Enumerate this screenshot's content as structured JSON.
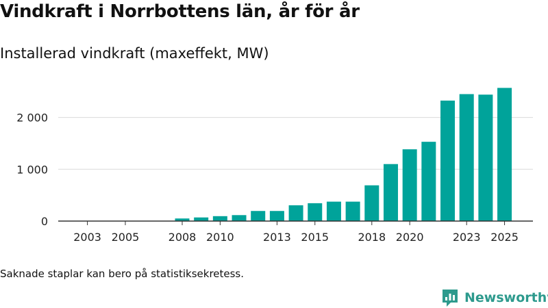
{
  "chart_data": {
    "type": "bar",
    "title": "Vindkraft i Norrbottens län, år för år",
    "subtitle": "Installerad vindkraft (maxeffekt, MW)",
    "xlabel": "",
    "ylabel": "",
    "categories": [
      "2003",
      "2004",
      "2005",
      "2006",
      "2007",
      "2008",
      "2009",
      "2010",
      "2011",
      "2012",
      "2013",
      "2014",
      "2015",
      "2016",
      "2017",
      "2018",
      "2019",
      "2020",
      "2021",
      "2022",
      "2023",
      "2024",
      "2025"
    ],
    "values": [
      0,
      0,
      0,
      0,
      0,
      50,
      70,
      95,
      115,
      195,
      195,
      305,
      345,
      375,
      375,
      690,
      1100,
      1385,
      1530,
      2325,
      2450,
      2440,
      2570
    ],
    "x_tick_labels": [
      "2003",
      "2005",
      "2008",
      "2010",
      "2013",
      "2015",
      "2018",
      "2020",
      "2023",
      "2025"
    ],
    "y_ticks": [
      0,
      1000,
      2000
    ],
    "y_tick_labels": [
      "0",
      "1 000",
      "2 000"
    ],
    "ylim": [
      0,
      2800
    ],
    "grid": true,
    "color": "#00a39a"
  },
  "note": "Saknade staplar kan bero på statistiksekretess.",
  "brand": {
    "name": "Newsworthy",
    "logo_icon": "newsworthy-logo-icon",
    "color": "#2d9a8d"
  }
}
